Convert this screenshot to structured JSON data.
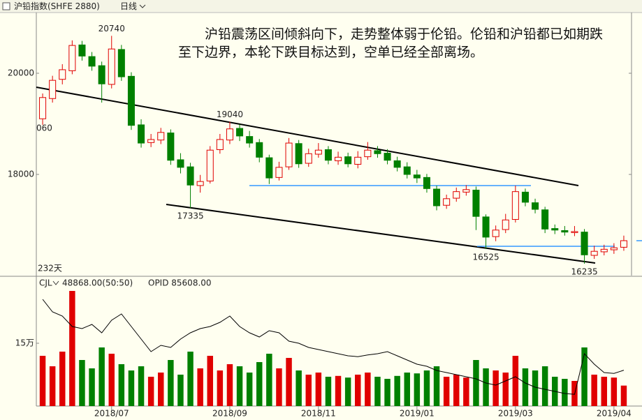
{
  "toolbar": {
    "symbol": "沪铅指数(SHFE 2880)",
    "period": "日线"
  },
  "comment": "沪铅震荡区间倾斜向下，走势整体弱于伦铅。伦铅和沪铅都已如期跌至下边界，本轮下跌目标达到，空单已经全部离场。",
  "chart_data": [
    {
      "type": "candlestick",
      "up_color": "#e00000",
      "down_color": "#008000",
      "ylim": [
        16000,
        21200
      ],
      "yticks": [
        18000,
        20000
      ],
      "open": [
        19100,
        19500,
        19880,
        20050,
        20560,
        20330,
        20150,
        19780,
        20470,
        19940,
        18980,
        18630,
        18680,
        18820,
        18290,
        18150,
        17780,
        17870,
        18490,
        18680,
        18910,
        18750,
        18630,
        18330,
        17940,
        18150,
        18610,
        18220,
        18400,
        18490,
        18270,
        18350,
        18200,
        18350,
        18470,
        18420,
        18270,
        18150,
        17990,
        17940,
        17710,
        17390,
        17530,
        17650,
        17690,
        17160,
        16770,
        16910,
        17110,
        17650,
        17440,
        17300,
        16930,
        16890,
        16850,
        16860,
        16400,
        16470,
        16510,
        16560
      ],
      "high": [
        19600,
        19950,
        20180,
        20650,
        20640,
        20420,
        20230,
        20740,
        20560,
        20020,
        19090,
        18800,
        18920,
        18890,
        18420,
        18230,
        17990,
        18560,
        18800,
        19040,
        18990,
        18860,
        18700,
        18390,
        18250,
        18720,
        18680,
        18510,
        18620,
        18560,
        18450,
        18430,
        18460,
        18640,
        18560,
        18500,
        18350,
        18240,
        18090,
        18010,
        17780,
        17600,
        17740,
        17790,
        17760,
        17210,
        16990,
        17220,
        17780,
        17720,
        17520,
        17360,
        17010,
        16980,
        16980,
        16920,
        16590,
        16610,
        16640,
        16790
      ],
      "low": [
        18980,
        19420,
        19780,
        19980,
        20250,
        20050,
        19420,
        19700,
        19850,
        18880,
        18530,
        18540,
        18600,
        18190,
        18020,
        17335,
        17640,
        17820,
        18410,
        18600,
        18660,
        18530,
        18240,
        17810,
        17880,
        18090,
        18130,
        18150,
        18330,
        18200,
        18190,
        18140,
        18120,
        18290,
        18330,
        18200,
        18060,
        17920,
        17830,
        17640,
        17290,
        17320,
        17460,
        17580,
        16900,
        16525,
        16680,
        16840,
        17050,
        17370,
        17230,
        16840,
        16820,
        16790,
        16780,
        16235,
        16330,
        16400,
        16430,
        16490
      ],
      "close": [
        19520,
        19860,
        20070,
        20550,
        20340,
        20140,
        19790,
        20480,
        19930,
        18970,
        18620,
        18690,
        18830,
        18280,
        18140,
        17790,
        17860,
        18480,
        18690,
        18900,
        18760,
        18620,
        18340,
        17930,
        18140,
        18620,
        18210,
        18410,
        18480,
        18280,
        18340,
        18210,
        18340,
        18480,
        18410,
        18280,
        18140,
        18000,
        17930,
        17720,
        17380,
        17520,
        17660,
        17700,
        17170,
        16760,
        16900,
        17100,
        17660,
        17450,
        17310,
        16920,
        16900,
        16860,
        16870,
        16410,
        16480,
        16520,
        16550,
        16690
      ],
      "price_labels": [
        {
          "index": 7,
          "value": 20740
        },
        {
          "index": 19,
          "value": 19040
        },
        {
          "index": 15,
          "value": 17335
        },
        {
          "index": 45,
          "value": 16525
        },
        {
          "index": 55,
          "value": 16235
        }
      ],
      "edge_label": "060",
      "bar_count_label": "232天"
    },
    {
      "type": "bar",
      "name": "CJL",
      "readout": "48868.00(50:50)",
      "line_readout": "OPID 85608.00",
      "ylim": [
        0,
        280000
      ],
      "yticks": [
        {
          "value": 150000,
          "label": "15万"
        }
      ],
      "categories": [
        null,
        null,
        null,
        null,
        null,
        null,
        null,
        "2018/07",
        null,
        null,
        null,
        null,
        null,
        null,
        null,
        null,
        null,
        null,
        null,
        "2018/09",
        null,
        null,
        null,
        null,
        null,
        null,
        null,
        null,
        "2018/11",
        null,
        null,
        null,
        null,
        null,
        null,
        null,
        null,
        null,
        "2019/01",
        null,
        null,
        null,
        null,
        null,
        null,
        null,
        null,
        null,
        "2019/03",
        null,
        null,
        null,
        null,
        null,
        null,
        null,
        null,
        null,
        "2019/04",
        null
      ],
      "series": [
        {
          "name": "CJL",
          "values": [
            120000,
            95000,
            130000,
            275000,
            110000,
            90000,
            140000,
            125000,
            100000,
            85000,
            95000,
            70000,
            80000,
            110000,
            75000,
            130000,
            90000,
            120000,
            85000,
            100000,
            95000,
            80000,
            105000,
            125000,
            90000,
            115000,
            85000,
            75000,
            80000,
            70000,
            72000,
            68000,
            75000,
            80000,
            70000,
            65000,
            72000,
            80000,
            78000,
            85000,
            95000,
            70000,
            75000,
            68000,
            110000,
            90000,
            85000,
            80000,
            120000,
            90000,
            85000,
            95000,
            70000,
            65000,
            60000,
            140000,
            75000,
            70000,
            68000,
            48868
          ]
        },
        {
          "name": "OPID",
          "type": "line",
          "color": "#000000",
          "values": [
            255000,
            225000,
            215000,
            190000,
            185000,
            195000,
            175000,
            205000,
            220000,
            190000,
            160000,
            130000,
            145000,
            140000,
            160000,
            175000,
            185000,
            190000,
            200000,
            215000,
            190000,
            175000,
            165000,
            180000,
            175000,
            155000,
            150000,
            140000,
            135000,
            130000,
            125000,
            120000,
            118000,
            122000,
            125000,
            130000,
            120000,
            110000,
            100000,
            95000,
            85000,
            80000,
            75000,
            70000,
            65000,
            55000,
            50000,
            60000,
            70000,
            55000,
            45000,
            40000,
            35000,
            30000,
            28000,
            125000,
            100000,
            80000,
            78000,
            85608
          ]
        }
      ]
    }
  ]
}
